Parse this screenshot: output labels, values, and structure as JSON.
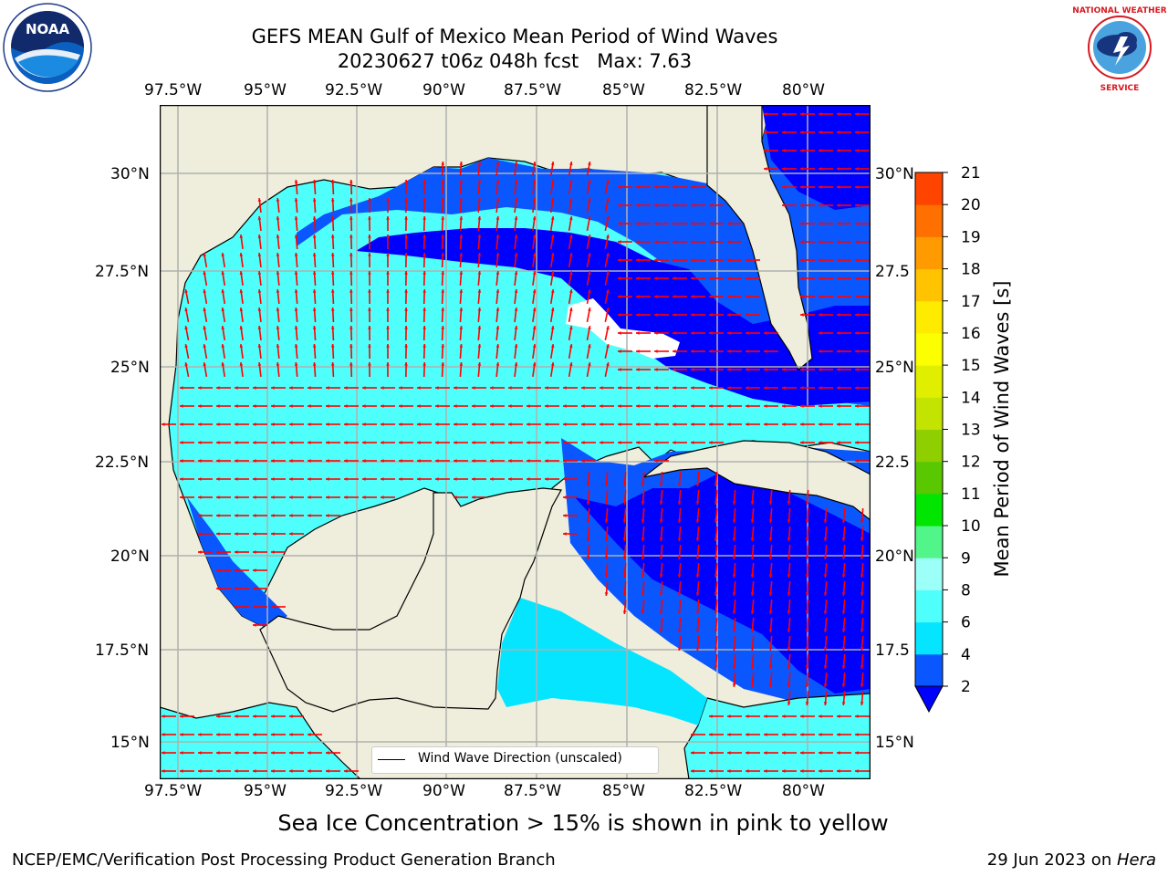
{
  "header": {
    "title_line1": "GEFS MEAN Gulf of Mexico Mean Period of Wind Waves",
    "title_line2": "20230627 t06z 048h fcst   Max: 7.63"
  },
  "logos": {
    "left": {
      "name": "NOAA",
      "ring_text": "NATIONAL OCEANIC AND ATMOSPHERIC ADMINISTRATION · U.S. DEPARTMENT OF COMMERCE"
    },
    "right": {
      "name": "NATIONAL WEATHER SERVICE"
    }
  },
  "map": {
    "lon_labels": [
      "97.5°W",
      "95°W",
      "92.5°W",
      "90°W",
      "87.5°W",
      "85°W",
      "82.5°W",
      "80°W"
    ],
    "lat_labels_left": [
      "30°N",
      "27.5°N",
      "25°N",
      "22.5°N",
      "20°N",
      "17.5°N",
      "15°N"
    ],
    "lat_labels_right": [
      "30°N",
      "27.5",
      "25°N",
      "22.5",
      "20°N",
      "17.5",
      "15°N"
    ],
    "legend_label": "Wind Wave Direction (unscaled)",
    "colors": {
      "land": "#efeedc",
      "grid": "#b0b0b0",
      "arrows": "#ff0000",
      "ice_hole": "#ffffff"
    }
  },
  "colorbar": {
    "label": "Mean Period of Wind Waves [s]",
    "ticks": [
      "2",
      "4",
      "6",
      "8",
      "9",
      "10",
      "11",
      "12",
      "13",
      "14",
      "15",
      "16",
      "17",
      "18",
      "19",
      "20",
      "21"
    ],
    "colors": [
      "#0a57ff",
      "#05e5ff",
      "#4ffffb",
      "#9cfff8",
      "#52f58a",
      "#00e600",
      "#5ac800",
      "#8fcf00",
      "#c3e300",
      "#e0ef00",
      "#fbff00",
      "#ffeb00",
      "#ffc300",
      "#ff9a00",
      "#ff7000",
      "#ff4400",
      "#ff1400"
    ],
    "extend_color": "#0000ff"
  },
  "footer": {
    "sea_ice_note": "Sea Ice Concentration > 15% is shown in pink to yellow",
    "credit": "NCEP/EMC/Verification Post Processing Product Generation Branch",
    "date": "29 Jun 2023 on ",
    "host": "Hera"
  }
}
